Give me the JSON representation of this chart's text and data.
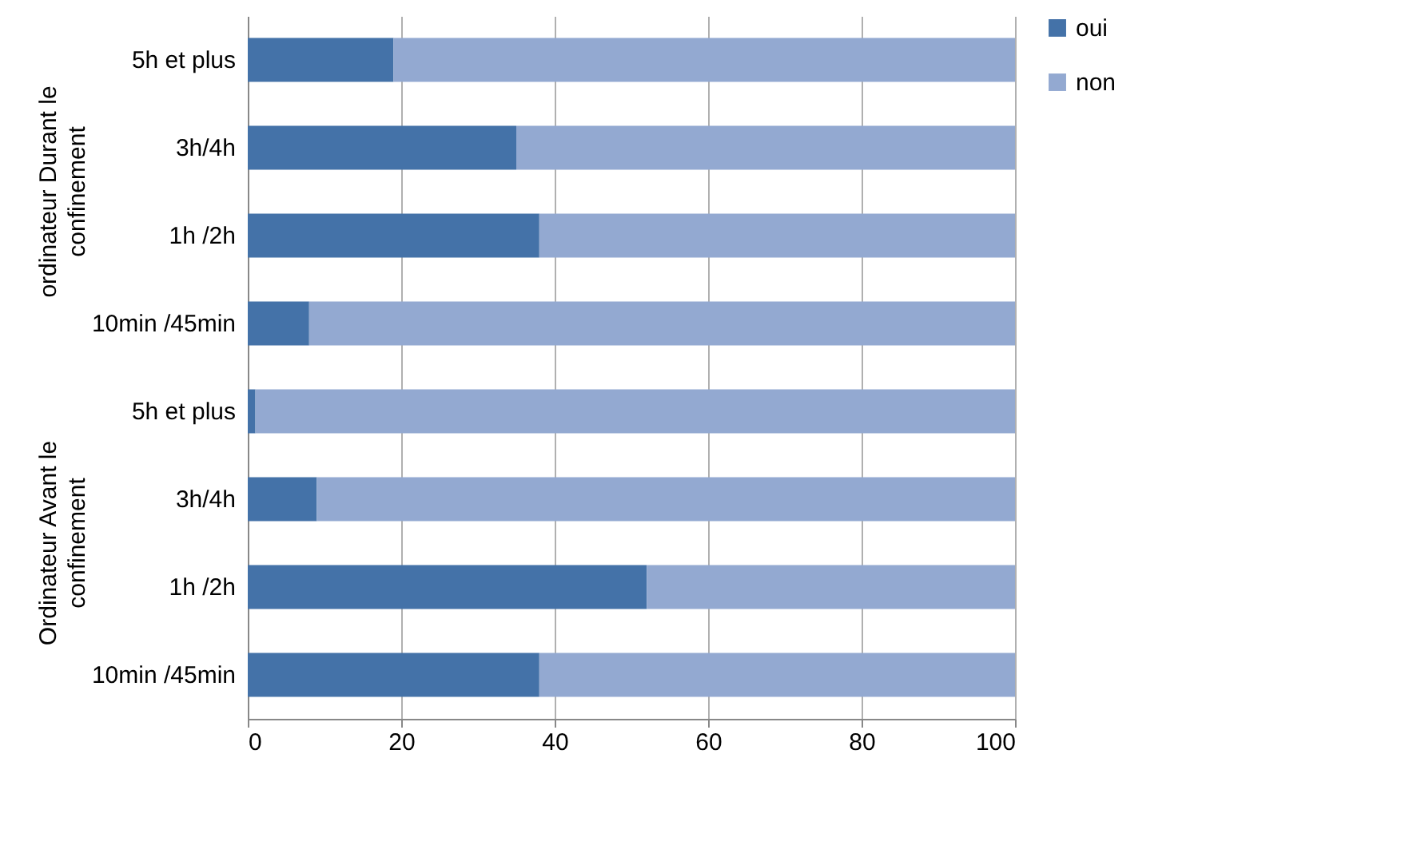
{
  "chart_data": {
    "type": "bar",
    "orientation": "horizontal",
    "stacked": true,
    "categories": [
      "5h et plus",
      "3h/4h",
      "1h /2h",
      "10min /45min",
      "5h et plus",
      "3h/4h",
      "1h /2h",
      "10min /45min"
    ],
    "series": [
      {
        "name": "oui",
        "color": "#4472a8",
        "values": [
          19,
          35,
          38,
          8,
          1,
          9,
          52,
          38
        ]
      },
      {
        "name": "non",
        "color": "#93a9d1",
        "values": [
          81,
          65,
          62,
          92,
          99,
          91,
          48,
          62
        ]
      }
    ],
    "xlim": [
      0,
      100
    ],
    "xticks": [
      0,
      20,
      40,
      60,
      80,
      100
    ],
    "grid": "x",
    "legend": "right",
    "annotations": [
      "ordinateur Durant le confinement",
      "Ordinateur  Avant le confinement"
    ]
  }
}
